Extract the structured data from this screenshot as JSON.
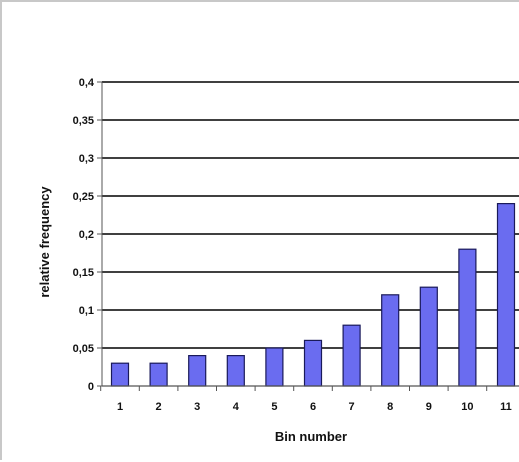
{
  "chart_data": {
    "type": "bar",
    "title": "",
    "xlabel": "Bin number",
    "ylabel": "relative frequency",
    "categories": [
      "1",
      "2",
      "3",
      "4",
      "5",
      "6",
      "7",
      "8",
      "9",
      "10",
      "11"
    ],
    "values": [
      0.03,
      0.03,
      0.04,
      0.04,
      0.05,
      0.06,
      0.08,
      0.12,
      0.13,
      0.18,
      0.24
    ],
    "ylim": [
      0,
      0.4
    ],
    "yticks": [
      "0",
      "0,05",
      "0,1",
      "0,15",
      "0,2",
      "0,25",
      "0,3",
      "0,35",
      "0,4"
    ],
    "grid": true,
    "legend": "none",
    "colors": {
      "bar_fill": "#6a6cf0",
      "bar_stroke": "#1a1a5a",
      "gridline": "#000000",
      "axis": "#555555"
    }
  }
}
